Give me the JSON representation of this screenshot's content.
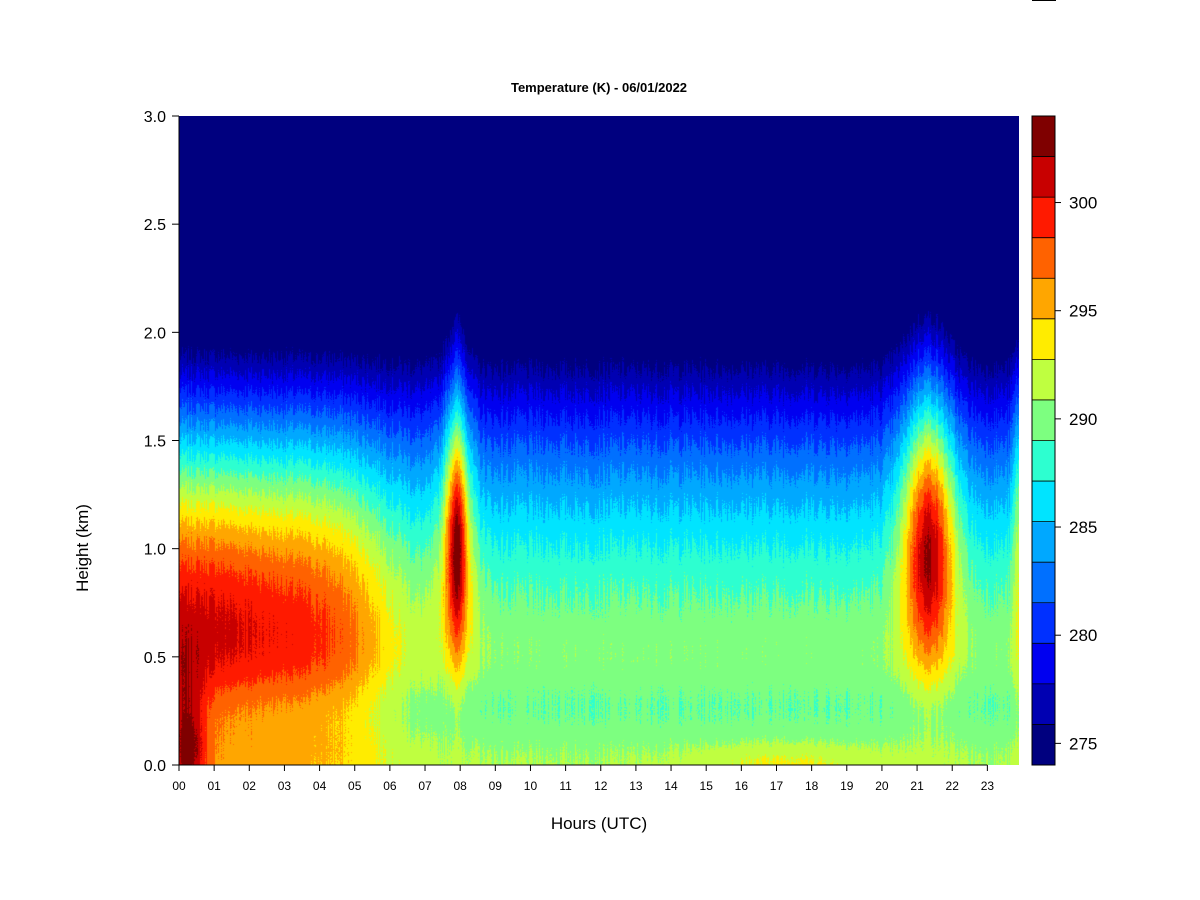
{
  "chart_data": {
    "type": "heatmap",
    "title": "Temperature (K) - 06/01/2022",
    "xlabel": "Hours (UTC)",
    "ylabel": "Height (km)",
    "xlim": [
      0,
      23.9
    ],
    "ylim": [
      0,
      3.0
    ],
    "x_ticks": [
      "00",
      "01",
      "02",
      "03",
      "04",
      "05",
      "06",
      "07",
      "08",
      "09",
      "10",
      "11",
      "12",
      "13",
      "14",
      "15",
      "16",
      "17",
      "18",
      "19",
      "20",
      "21",
      "22",
      "23"
    ],
    "y_ticks": [
      "0.0",
      "0.5",
      "1.0",
      "1.5",
      "2.0",
      "2.5",
      "3.0"
    ],
    "y_tick_values": [
      0,
      0.5,
      1.0,
      1.5,
      2.0,
      2.5,
      3.0
    ],
    "colorbar": {
      "label_values": [
        275,
        280,
        285,
        290,
        295,
        300
      ],
      "labels": [
        "275",
        "280",
        "285",
        "290",
        "295",
        "300"
      ],
      "min": 274,
      "max": 304,
      "step": 2,
      "colors": [
        "#00007f",
        "#0000b2",
        "#0000f0",
        "#0030ff",
        "#0070ff",
        "#00a8ff",
        "#00e4ff",
        "#2dffd0",
        "#7dff80",
        "#bfff40",
        "#ffec00",
        "#ffa600",
        "#ff6200",
        "#ff1a00",
        "#c80000",
        "#7f0000"
      ]
    },
    "features": [
      {
        "hour": 7.9,
        "core_km": 1.0,
        "peak_K": 304
      },
      {
        "hour": 21.3,
        "core_km": 1.0,
        "peak_K": 303
      },
      {
        "hour": 0.4,
        "core_km": 0.6,
        "peak_K": 302
      }
    ]
  }
}
